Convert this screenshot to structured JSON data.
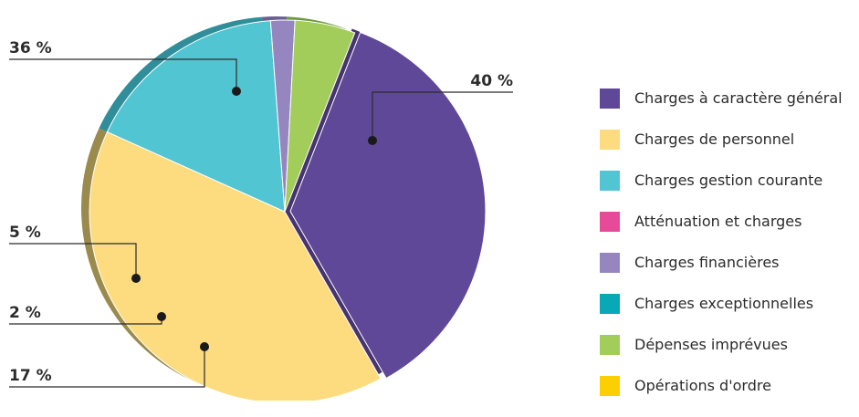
{
  "chart_data": {
    "type": "pie",
    "title": "",
    "slices": [
      {
        "name": "Charges à caractère général",
        "value": 36,
        "label": "36 %",
        "color": "#5f4898",
        "shade": "#47336f"
      },
      {
        "name": "Charges de personnel",
        "value": 40,
        "label": "40 %",
        "color": "#fddb7f",
        "shade": "#9a8a4c"
      },
      {
        "name": "Charges gestion courante",
        "value": 17,
        "label": "17 %",
        "color": "#52c5d2",
        "shade": "#2f8e99"
      },
      {
        "name": "Atténuation et charges",
        "value": 0,
        "label": "",
        "color": "#e84a9a",
        "shade": "#a8326f"
      },
      {
        "name": "Charges financières",
        "value": 2,
        "label": "2 %",
        "color": "#9586bf",
        "shade": "#6b5f90"
      },
      {
        "name": "Charges exceptionnelles",
        "value": 0,
        "label": "",
        "color": "#07a9b6",
        "shade": "#057a84"
      },
      {
        "name": "Dépenses imprévues",
        "value": 5,
        "label": "5 %",
        "color": "#a2cd5a",
        "shade": "#6e9a3a"
      },
      {
        "name": "Opérations d'ordre",
        "value": 0,
        "label": "",
        "color": "#fccf03",
        "shade": "#b08f02"
      }
    ],
    "legend_position": "right"
  }
}
